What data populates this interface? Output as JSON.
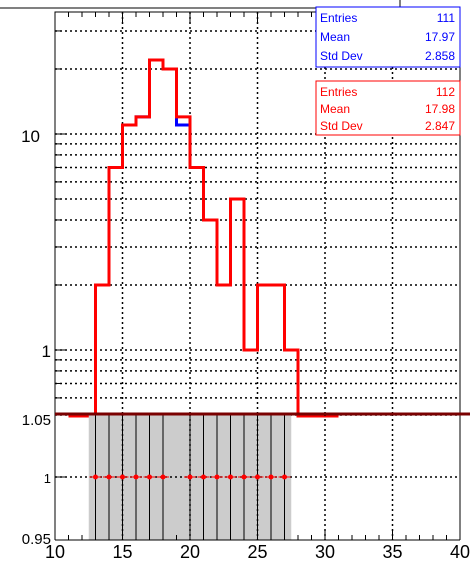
{
  "chart_data": [
    {
      "type": "line",
      "panel": "main",
      "y_scale": "log",
      "xlim": [
        10,
        40
      ],
      "ylim": [
        0.5,
        30
      ],
      "grid": true,
      "x_ticks": [
        "10",
        "15",
        "20",
        "25",
        "30",
        "35",
        "40"
      ],
      "y_tick_labels": [
        {
          "value": 1,
          "label": "1"
        },
        {
          "value": 10,
          "label": "10"
        }
      ],
      "bin_edges": [
        11,
        12,
        13,
        14,
        15,
        16,
        17,
        18,
        19,
        20,
        21,
        22,
        23,
        24,
        25,
        26,
        27,
        28,
        29,
        30,
        31
      ],
      "series": [
        {
          "color": "#0000ff",
          "values": [
            0,
            0,
            2,
            7,
            11,
            12,
            22,
            20,
            11,
            7,
            4,
            2,
            5,
            1,
            2,
            2,
            1,
            0,
            0,
            0
          ]
        },
        {
          "color": "#ff0000",
          "values": [
            0,
            0,
            2,
            7,
            11,
            12,
            22,
            20,
            12,
            7,
            4,
            2,
            5,
            1,
            2,
            2,
            1,
            0,
            0,
            0
          ]
        }
      ],
      "stats_boxes": [
        {
          "color": "#0000ff",
          "rows": [
            {
              "label": "Entries",
              "value": "111"
            },
            {
              "label": "Mean",
              "value": "17.97"
            },
            {
              "label": "Std Dev",
              "value": "2.858"
            }
          ]
        },
        {
          "color": "#ff0000",
          "rows": [
            {
              "label": "Entries",
              "value": "112"
            },
            {
              "label": "Mean",
              "value": "17.98"
            },
            {
              "label": "Std Dev",
              "value": "2.847"
            }
          ]
        }
      ]
    },
    {
      "type": "scatter",
      "panel": "ratio",
      "xlim": [
        10,
        40
      ],
      "ylim": [
        0.95,
        1.05
      ],
      "grid": true,
      "x_ticks": [
        "10",
        "15",
        "20",
        "25",
        "30",
        "35",
        "40"
      ],
      "y_tick_labels": [
        "0.95",
        "1",
        "1.05"
      ],
      "reference_line": 1,
      "band": {
        "x_range": [
          12.5,
          27.5
        ],
        "color": "#cccccc"
      },
      "points": {
        "x": [
          13,
          14,
          15,
          16,
          17,
          18,
          20,
          21,
          22,
          23,
          24,
          25,
          26,
          27
        ],
        "y": [
          1,
          1,
          1,
          1,
          1,
          1,
          1,
          1,
          1,
          1,
          1,
          1,
          1,
          1
        ],
        "color": "#ff0000"
      }
    }
  ]
}
